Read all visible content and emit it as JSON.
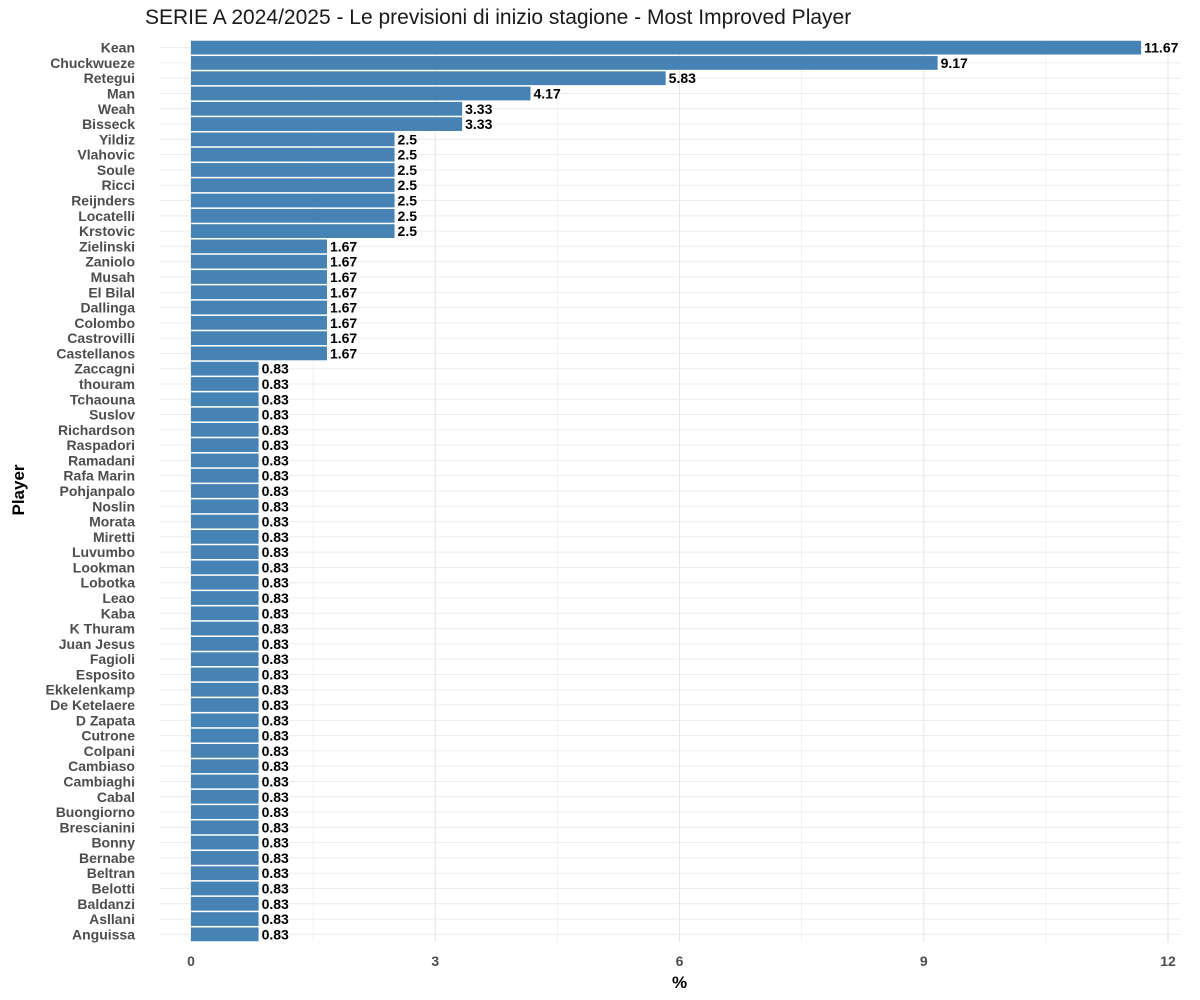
{
  "chart_data": {
    "type": "bar",
    "orientation": "horizontal",
    "title": "SERIE A 2024/2025 - Le previsioni di inizio stagione - Most Improved Player",
    "xlabel": "%",
    "ylabel": "Player",
    "xlim": [
      0,
      12
    ],
    "xticks": [
      "0",
      "3",
      "6",
      "9",
      "12"
    ],
    "grid": true,
    "bar_color": "#4682b4",
    "categories": [
      "Kean",
      "Chuckwueze",
      "Retegui",
      "Man",
      "Weah",
      "Bisseck",
      "Yildiz",
      "Vlahovic",
      "Soule",
      "Ricci",
      "Reijnders",
      "Locatelli",
      "Krstovic",
      "Zielinski",
      "Zaniolo",
      "Musah",
      "El Bilal",
      "Dallinga",
      "Colombo",
      "Castrovilli",
      "Castellanos",
      "Zaccagni",
      "thouram",
      "Tchaouna",
      "Suslov",
      "Richardson",
      "Raspadori",
      "Ramadani",
      "Rafa Marin",
      "Pohjanpalo",
      "Noslin",
      "Morata",
      "Miretti",
      "Luvumbo",
      "Lookman",
      "Lobotka",
      "Leao",
      "Kaba",
      "K Thuram",
      "Juan Jesus",
      "Fagioli",
      "Esposito",
      "Ekkelenkamp",
      "De Ketelaere",
      "D Zapata",
      "Cutrone",
      "Colpani",
      "Cambiaso",
      "Cambiaghi",
      "Cabal",
      "Buongiorno",
      "Brescianini",
      "Bonny",
      "Bernabe",
      "Beltran",
      "Belotti",
      "Baldanzi",
      "Asllani",
      "Anguissa"
    ],
    "values": [
      11.67,
      9.17,
      5.83,
      4.17,
      3.33,
      3.33,
      2.5,
      2.5,
      2.5,
      2.5,
      2.5,
      2.5,
      2.5,
      1.67,
      1.67,
      1.67,
      1.67,
      1.67,
      1.67,
      1.67,
      1.67,
      0.83,
      0.83,
      0.83,
      0.83,
      0.83,
      0.83,
      0.83,
      0.83,
      0.83,
      0.83,
      0.83,
      0.83,
      0.83,
      0.83,
      0.83,
      0.83,
      0.83,
      0.83,
      0.83,
      0.83,
      0.83,
      0.83,
      0.83,
      0.83,
      0.83,
      0.83,
      0.83,
      0.83,
      0.83,
      0.83,
      0.83,
      0.83,
      0.83,
      0.83,
      0.83,
      0.83,
      0.83,
      0.83
    ],
    "data_labels": [
      "11.67",
      "9.17",
      "5.83",
      "4.17",
      "3.33",
      "3.33",
      "2.5",
      "2.5",
      "2.5",
      "2.5",
      "2.5",
      "2.5",
      "2.5",
      "1.67",
      "1.67",
      "1.67",
      "1.67",
      "1.67",
      "1.67",
      "1.67",
      "1.67",
      "0.83",
      "0.83",
      "0.83",
      "0.83",
      "0.83",
      "0.83",
      "0.83",
      "0.83",
      "0.83",
      "0.83",
      "0.83",
      "0.83",
      "0.83",
      "0.83",
      "0.83",
      "0.83",
      "0.83",
      "0.83",
      "0.83",
      "0.83",
      "0.83",
      "0.83",
      "0.83",
      "0.83",
      "0.83",
      "0.83",
      "0.83",
      "0.83",
      "0.83",
      "0.83",
      "0.83",
      "0.83",
      "0.83",
      "0.83",
      "0.83",
      "0.83",
      "0.83",
      "0.83"
    ]
  }
}
